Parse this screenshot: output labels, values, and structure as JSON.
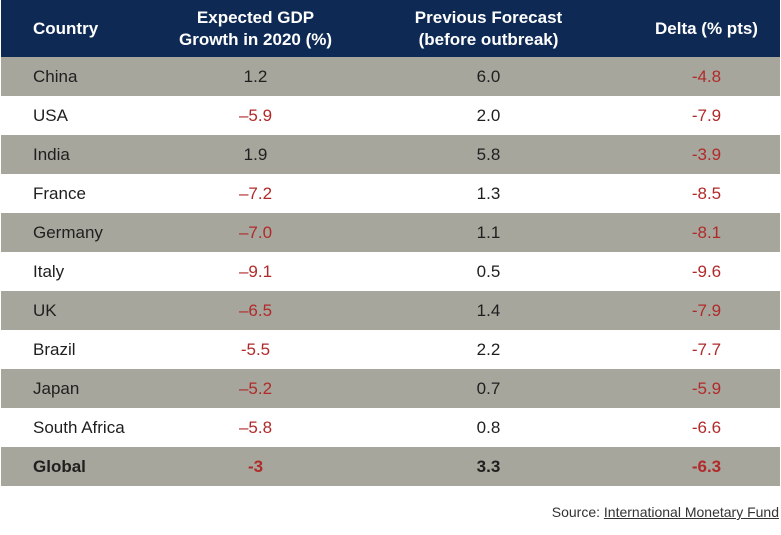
{
  "chart_data": {
    "type": "table",
    "columns": [
      "Country",
      "Expected GDP Growth in 2020 (%)",
      "Previous Forecast (before outbreak)",
      "Delta (% pts)"
    ],
    "header": {
      "country": "Country",
      "expected_line1": "Expected GDP",
      "expected_line2": "Growth in 2020 (%)",
      "previous_line1": "Previous Forecast",
      "previous_line2": "(before outbreak)",
      "delta": "Delta (% pts)"
    },
    "rows": [
      {
        "country": "China",
        "expected": "1.2",
        "previous": "6.0",
        "delta": "-4.8"
      },
      {
        "country": "USA",
        "expected": "–5.9",
        "previous": "2.0",
        "delta": "-7.9"
      },
      {
        "country": "India",
        "expected": "1.9",
        "previous": "5.8",
        "delta": "-3.9"
      },
      {
        "country": "France",
        "expected": "–7.2",
        "previous": "1.3",
        "delta": "-8.5"
      },
      {
        "country": "Germany",
        "expected": "–7.0",
        "previous": "1.1",
        "delta": "-8.1"
      },
      {
        "country": "Italy",
        "expected": "–9.1",
        "previous": "0.5",
        "delta": "-9.6"
      },
      {
        "country": "UK",
        "expected": "–6.5",
        "previous": "1.4",
        "delta": "-7.9"
      },
      {
        "country": "Brazil",
        "expected": "-5.5",
        "previous": "2.2",
        "delta": "-7.7"
      },
      {
        "country": "Japan",
        "expected": "–5.2",
        "previous": "0.7",
        "delta": "-5.9"
      },
      {
        "country": "South Africa",
        "expected": "–5.8",
        "previous": "0.8",
        "delta": "-6.6"
      },
      {
        "country": "Global",
        "expected": "-3",
        "previous": "3.3",
        "delta": "-6.3",
        "total": true
      }
    ]
  },
  "colors": {
    "header_bg": "#0e2a54",
    "stripe_bg": "#a6a69c",
    "negative_text": "#b12a2a"
  },
  "source": {
    "prefix": "Source: ",
    "link_text": "International Monetary Fund"
  }
}
